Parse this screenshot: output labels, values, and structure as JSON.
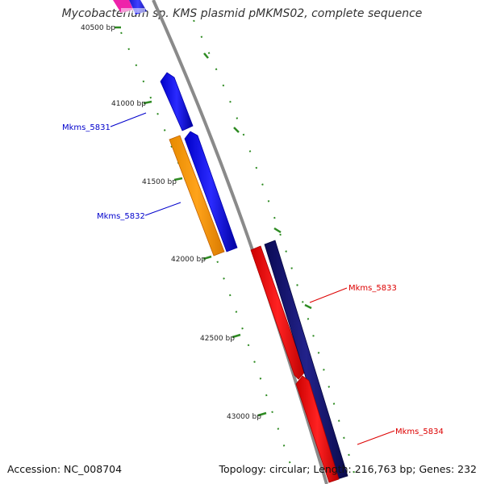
{
  "title": "Mycobacterium sp. KMS plasmid pMKMS02, complete sequence",
  "accession": "Accession: NC_008704",
  "summary": "Topology: circular; Length: 216,763 bp; Genes: 232",
  "ticks": [
    {
      "label": "40500 bp"
    },
    {
      "label": "41000 bp"
    },
    {
      "label": "41500 bp"
    },
    {
      "label": "42000 bp"
    },
    {
      "label": "42500 bp"
    },
    {
      "label": "43000 bp"
    }
  ],
  "genes": [
    {
      "name": "Mkms_5831",
      "color": "#0000cc"
    },
    {
      "name": "Mkms_5832",
      "color": "#0000cc"
    },
    {
      "name": "Mkms_5833",
      "color": "#dd0000"
    },
    {
      "name": "Mkms_5834",
      "color": "#dd0000"
    }
  ],
  "colors": {
    "backbone": "#8a8a8a",
    "tick": "#2e8b22",
    "forward_gene": "#1010ee",
    "reverse_gene": "#ee1111",
    "orange_gene": "#ff9900",
    "navy_gene": "#10106e",
    "magenta_gene": "#ee22aa"
  }
}
